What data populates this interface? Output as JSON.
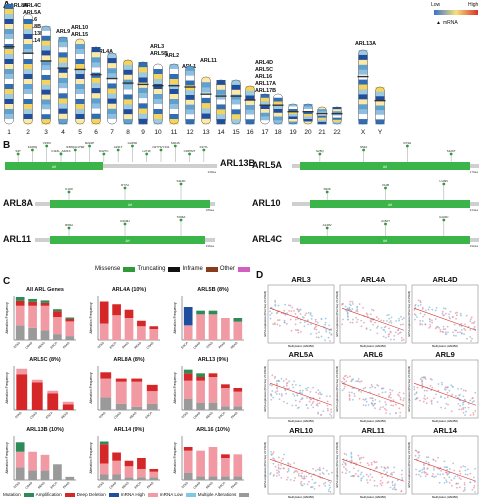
{
  "panels": {
    "a": "A",
    "b": "B",
    "c": "C",
    "d": "D"
  },
  "panel_a": {
    "legend": {
      "low": "Low",
      "high": "High",
      "mrna": "mRNA"
    },
    "chromosome_labels": [
      "1",
      "2",
      "3",
      "4",
      "5",
      "6",
      "7",
      "8",
      "9",
      "10",
      "11",
      "12",
      "13",
      "14",
      "15",
      "16",
      "17",
      "18",
      "19",
      "20",
      "21",
      "22",
      "X",
      "Y"
    ],
    "gene_groups": [
      {
        "chrom": "1",
        "genes": [
          "ARL8A"
        ]
      },
      {
        "chrom": "2",
        "genes": [
          "ARL4C",
          "ARL5A",
          "ARL6",
          "ARL8B",
          "ARL13B",
          "ARL14"
        ]
      },
      {
        "chrom": "4",
        "genes": [
          "ARL9"
        ]
      },
      {
        "chrom": "5",
        "genes": [
          "ARL10",
          "ARL15"
        ]
      },
      {
        "chrom": "7",
        "genes": [
          "ARL4A"
        ]
      },
      {
        "chrom": "10",
        "genes": [
          "ARL3",
          "ARL5B"
        ]
      },
      {
        "chrom": "11",
        "genes": [
          "ARL2"
        ]
      },
      {
        "chrom": "12",
        "genes": [
          "ARL1"
        ]
      },
      {
        "chrom": "13",
        "genes": [
          "ARL11"
        ]
      },
      {
        "chrom": "17",
        "genes": [
          "ARL4D",
          "ARL5C",
          "ARL16",
          "ARL17A",
          "ARL17B"
        ]
      },
      {
        "chrom": "X",
        "genes": [
          "ARL13A"
        ]
      }
    ]
  },
  "panel_b": {
    "proteins": [
      {
        "name": "ARL13B",
        "domain": "Arf",
        "length": "428aa",
        "mutations": [
          "S3T",
          "K108Q",
          "V159I",
          "F116L_A201S",
          "I158Q/H179R",
          "R222P",
          "D227C",
          "A231T",
          "G245D",
          "L271F",
          "N277S/Y131",
          "S304S",
          "C365S/T",
          "F377L"
        ]
      },
      {
        "name": "ARL5A",
        "domain": "Arf",
        "length": "179aa",
        "mutations": [
          "S25Q",
          "S53A",
          "R74H",
          "S126T"
        ]
      },
      {
        "name": "ARL8A",
        "domain": "Arf",
        "length": "186aa",
        "mutations": [
          "K14D",
          "R77H",
          "S112D"
        ]
      },
      {
        "name": "ARL10",
        "domain": "Arf",
        "length": "244aa",
        "mutations": [
          "S93K",
          "V11B",
          "L139V"
        ]
      },
      {
        "name": "ARL11",
        "domain": "Arf",
        "length": "196aa",
        "mutations": [
          "R59H",
          "R109H",
          "T296A"
        ]
      },
      {
        "name": "ARL4C",
        "domain": "Arf",
        "length": "192aa",
        "mutations": [
          "A149V",
          "A152T",
          "G103C"
        ]
      }
    ],
    "legend": [
      {
        "label": "Missense",
        "color": "#2e9a3a"
      },
      {
        "label": "Truncating",
        "color": "#111111"
      },
      {
        "label": "Inframe",
        "color": "#8a3b1b"
      },
      {
        "label": "Other",
        "color": "#d05fc0"
      }
    ]
  },
  "panel_c": {
    "ylabel": "Alteration Frequency",
    "legend": [
      {
        "label": "Mutation",
        "color": "#2e8b57"
      },
      {
        "label": "Amplification",
        "color": "#d62728"
      },
      {
        "label": "Deep Deletion",
        "color": "#1f4e9e"
      },
      {
        "label": "mRNA High",
        "color": "#f19aa3"
      },
      {
        "label": "mRNA Low",
        "color": "#7ec8e3"
      },
      {
        "label": "Multiple Alterations",
        "color": "#9a9a9a"
      }
    ]
  },
  "chart_data": [
    {
      "type": "bar",
      "title": "All ARL Genes",
      "ylabel": "Alteration Frequency",
      "categories": [
        "STAD",
        "COAD",
        "READ",
        "ESCA",
        "PAAD"
      ],
      "series": [
        {
          "name": "Multiple Alterations",
          "values": [
            30,
            25,
            20,
            12,
            8
          ]
        },
        {
          "name": "mRNA High",
          "values": [
            40,
            45,
            50,
            35,
            30
          ]
        },
        {
          "name": "Amplification",
          "values": [
            10,
            8,
            6,
            12,
            5
          ]
        },
        {
          "name": "Mutation",
          "values": [
            8,
            6,
            5,
            4,
            3
          ]
        }
      ],
      "ylim": [
        0,
        90
      ]
    },
    {
      "type": "bar",
      "title": "ARL4A (10%)",
      "ylabel": "Alteration Frequency",
      "categories": [
        "STAD",
        "ESCA",
        "PAAD",
        "READ",
        "COAD"
      ],
      "series": [
        {
          "name": "mRNA High",
          "values": [
            6,
            9,
            8,
            5,
            4
          ]
        },
        {
          "name": "Amplification",
          "values": [
            8,
            4,
            3,
            2,
            1
          ]
        }
      ],
      "ylim": [
        0,
        16
      ]
    },
    {
      "type": "bar",
      "title": "ARL5B (8%)",
      "ylabel": "Alteration Frequency",
      "categories": [
        "ESCA",
        "COAD",
        "STAD",
        "PAAD",
        "READ"
      ],
      "series": [
        {
          "name": "mRNA High",
          "values": [
            4,
            7,
            7,
            6,
            5
          ]
        },
        {
          "name": "Deep Deletion",
          "values": [
            5,
            0,
            0,
            0,
            0
          ]
        },
        {
          "name": "Mutation",
          "values": [
            0,
            1,
            1,
            0,
            1
          ]
        }
      ],
      "ylim": [
        0,
        12
      ]
    },
    {
      "type": "bar",
      "title": "ARL5C (8%)",
      "ylabel": "Alteration Frequency",
      "categories": [
        "STAD",
        "COAD",
        "ESCA",
        "READ"
      ],
      "series": [
        {
          "name": "Amplification",
          "values": [
            13,
            10,
            6,
            2
          ]
        },
        {
          "name": "mRNA High",
          "values": [
            2,
            1,
            1,
            1
          ]
        }
      ],
      "ylim": [
        0,
        16
      ]
    },
    {
      "type": "bar",
      "title": "ARL8A (8%)",
      "ylabel": "Alteration Frequency",
      "categories": [
        "STAD",
        "COAD",
        "READ",
        "ESCA"
      ],
      "series": [
        {
          "name": "Multiple Alterations",
          "values": [
            4,
            2,
            1,
            2
          ]
        },
        {
          "name": "mRNA High",
          "values": [
            6,
            7,
            8,
            4
          ]
        },
        {
          "name": "Amplification",
          "values": [
            2,
            1,
            1,
            2
          ]
        }
      ],
      "ylim": [
        0,
        14
      ]
    },
    {
      "type": "bar",
      "title": "ARL13 (9%)",
      "ylabel": "Alteration Frequency",
      "categories": [
        "STAD",
        "COAD",
        "READ",
        "ESCA",
        "PAAD"
      ],
      "series": [
        {
          "name": "Multiple Alterations",
          "values": [
            3,
            2,
            2,
            1,
            1
          ]
        },
        {
          "name": "mRNA High",
          "values": [
            5,
            6,
            7,
            5,
            4
          ]
        },
        {
          "name": "Amplification",
          "values": [
            2,
            1,
            1,
            1,
            1
          ]
        },
        {
          "name": "Mutation",
          "values": [
            1,
            1,
            0,
            0,
            0
          ]
        }
      ],
      "ylim": [
        0,
        12
      ]
    },
    {
      "type": "bar",
      "title": "ARL13B (10%)",
      "ylabel": "Alteration Frequency",
      "categories": [
        "STAD",
        "COAD",
        "READ",
        "ESCA",
        "PAAD"
      ],
      "series": [
        {
          "name": "Multiple Alterations",
          "values": [
            4,
            3,
            3,
            5,
            1
          ]
        },
        {
          "name": "mRNA High",
          "values": [
            5,
            6,
            5,
            0,
            0
          ]
        },
        {
          "name": "Mutation",
          "values": [
            3,
            0,
            0,
            0,
            0
          ]
        }
      ],
      "ylim": [
        0,
        14
      ]
    },
    {
      "type": "bar",
      "title": "ARL14 (9%)",
      "ylabel": "Alteration Frequency",
      "categories": [
        "STAD",
        "COAD",
        "READ",
        "ESCA",
        "PAAD"
      ],
      "series": [
        {
          "name": "Multiple Alterations",
          "values": [
            2,
            2,
            1,
            1,
            1
          ]
        },
        {
          "name": "mRNA High",
          "values": [
            4,
            5,
            4,
            3,
            2
          ]
        },
        {
          "name": "Amplification",
          "values": [
            7,
            3,
            2,
            4,
            1
          ]
        },
        {
          "name": "Mutation",
          "values": [
            1,
            0,
            0,
            0,
            0
          ]
        }
      ],
      "ylim": [
        0,
        16
      ]
    },
    {
      "type": "bar",
      "title": "ARL16 (10%)",
      "ylabel": "Alteration Frequency",
      "categories": [
        "STAD",
        "COAD",
        "READ",
        "ESCA",
        "PAAD"
      ],
      "series": [
        {
          "name": "Multiple Alterations",
          "values": [
            2,
            1,
            1,
            1,
            1
          ]
        },
        {
          "name": "mRNA High",
          "values": [
            6,
            7,
            8,
            5,
            6
          ]
        },
        {
          "name": "Amplification",
          "values": [
            1,
            0,
            0,
            1,
            0
          ]
        }
      ],
      "ylim": [
        0,
        12
      ]
    },
    {
      "type": "scatter",
      "title": "ARL3",
      "stat": "R=-0.30",
      "pval": "P=5.09e-9",
      "xlabel": "Methylation (HM450)",
      "ylabel": "mRNA expression (RNA Seq V2 RSEM)"
    },
    {
      "type": "scatter",
      "title": "ARL4A",
      "stat": "R=-0.44",
      "pval": "P=2.08e-18",
      "xlabel": "Methylation (HM450)",
      "ylabel": "mRNA expression (RNA Seq V2 RSEM)"
    },
    {
      "type": "scatter",
      "title": "ARL4D",
      "stat": "R=-0.56",
      "pval": "P=1.40e-32",
      "xlabel": "Methylation (HM450)",
      "ylabel": "mRNA expression (RNA Seq V2 RSEM)"
    },
    {
      "type": "scatter",
      "title": "ARL5A",
      "stat": "R=-0.33",
      "pval": "P=4.81e-11",
      "xlabel": "Methylation (HM450)",
      "ylabel": "mRNA expression (RNA Seq V2 RSEM)"
    },
    {
      "type": "scatter",
      "title": "ARL6",
      "stat": "R=-0.37",
      "pval": "P=2.51e-13",
      "xlabel": "Methylation (HM450)",
      "ylabel": "mRNA expression (RNA Seq V2 RSEM)"
    },
    {
      "type": "scatter",
      "title": "ARL9",
      "stat": "R=-0.32",
      "pval": "P=2.46e-9",
      "xlabel": "Methylation (HM450)",
      "ylabel": "mRNA expression (RNA Seq V2 RSEM)"
    },
    {
      "type": "scatter",
      "title": "ARL10",
      "stat": "R=-0.37",
      "pval": "P=1.74e-13",
      "xlabel": "Methylation (HM450)",
      "ylabel": "mRNA expression (RNA Seq V2 RSEM)"
    },
    {
      "type": "scatter",
      "title": "ARL11",
      "stat": "R=-0.49",
      "pval": "P=2.58e-24",
      "xlabel": "Methylation (HM450)",
      "ylabel": "mRNA expression (RNA Seq V2 RSEM)"
    },
    {
      "type": "scatter",
      "title": "ARL14",
      "stat": "R=-0.44",
      "pval": "P=5.21e-19",
      "xlabel": "Methylation (HM450)",
      "ylabel": "mRNA expression (RNA Seq V2 RSEM)"
    }
  ]
}
